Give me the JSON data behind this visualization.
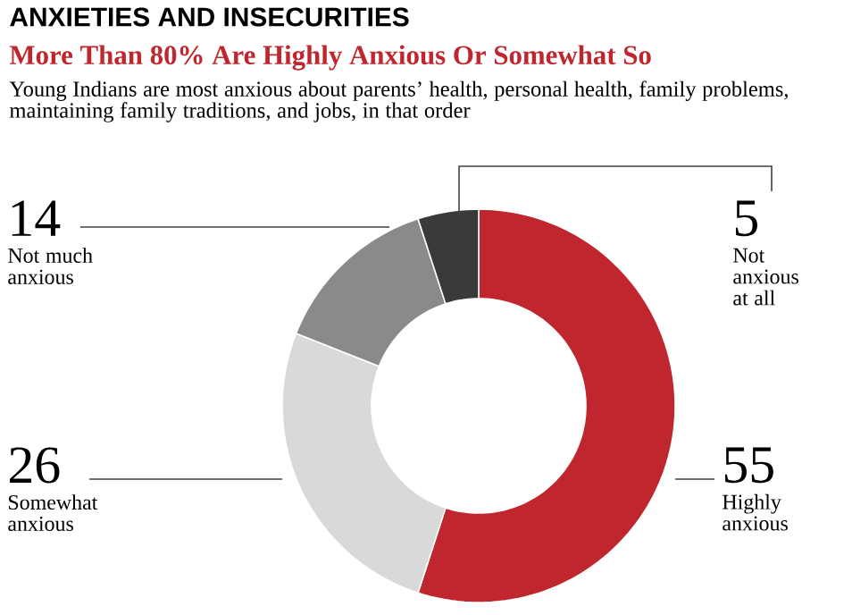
{
  "chart_data": {
    "type": "donut",
    "title": "ANXIETIES AND INSECURITIES",
    "subtitle": "More Than 80% Are Highly Anxious Or Somewhat So",
    "annotations": [
      "Young Indians are most anxious about parents’ health, personal health, family problems, maintaining family traditions, and jobs, in that order"
    ],
    "categories": [
      "Highly anxious",
      "Somewhat anxious",
      "Not much anxious",
      "Not anxious at all"
    ],
    "values": [
      55,
      26,
      14,
      5
    ],
    "colors": [
      "#c0262d",
      "#d9d9d9",
      "#8a8a8a",
      "#3a3a3a"
    ],
    "data_labels": true
  }
}
